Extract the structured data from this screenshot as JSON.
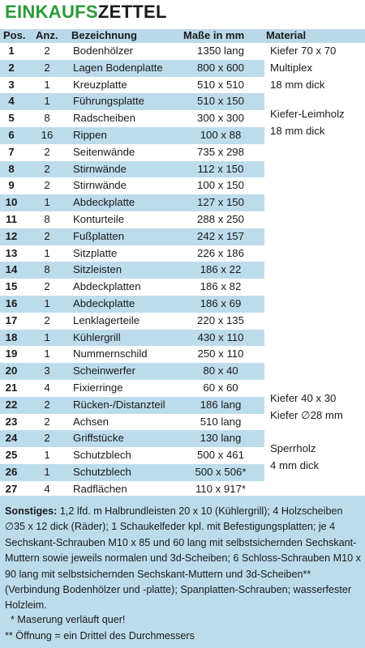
{
  "title": {
    "part1": "EINKAUFS",
    "part2": "ZETTEL"
  },
  "header": {
    "pos": "Pos.",
    "anz": "Anz.",
    "bez": "Bezeichnung",
    "mass": "Maße in mm",
    "mat": "Material"
  },
  "rows": [
    {
      "pos": "1",
      "anz": "2",
      "bez": "Bodenhölzer",
      "mass": "1350 lang"
    },
    {
      "pos": "2",
      "anz": "2",
      "bez": "Lagen Bodenplatte",
      "mass": "800 x 600"
    },
    {
      "pos": "3",
      "anz": "1",
      "bez": "Kreuzplatte",
      "mass": "510 x 510"
    },
    {
      "pos": "4",
      "anz": "1",
      "bez": "Führungsplatte",
      "mass": "510 x 150"
    },
    {
      "pos": "5",
      "anz": "8",
      "bez": "Radscheiben",
      "mass": "300 x 300"
    },
    {
      "pos": "6",
      "anz": "16",
      "bez": "Rippen",
      "mass": "100 x 88"
    },
    {
      "pos": "7",
      "anz": "2",
      "bez": "Seitenwände",
      "mass": "735 x 298"
    },
    {
      "pos": "8",
      "anz": "2",
      "bez": "Stirnwände",
      "mass": "112 x 150"
    },
    {
      "pos": "9",
      "anz": "2",
      "bez": "Stirnwände",
      "mass": "100 x 150"
    },
    {
      "pos": "10",
      "anz": "1",
      "bez": "Abdeckplatte",
      "mass": "127 x 150"
    },
    {
      "pos": "11",
      "anz": "8",
      "bez": "Konturteile",
      "mass": "288 x 250"
    },
    {
      "pos": "12",
      "anz": "2",
      "bez": "Fußplatten",
      "mass": "242 x 157"
    },
    {
      "pos": "13",
      "anz": "1",
      "bez": "Sitzplatte",
      "mass": "226 x 186"
    },
    {
      "pos": "14",
      "anz": "8",
      "bez": "Sitzleisten",
      "mass": "186 x 22"
    },
    {
      "pos": "15",
      "anz": "2",
      "bez": "Abdeckplatten",
      "mass": "186 x 82"
    },
    {
      "pos": "16",
      "anz": "1",
      "bez": "Abdeckplatte",
      "mass": "186 x 69"
    },
    {
      "pos": "17",
      "anz": "2",
      "bez": "Lenklagerteile",
      "mass": "220 x 135"
    },
    {
      "pos": "18",
      "anz": "1",
      "bez": "Kühlergrill",
      "mass": "430 x 110"
    },
    {
      "pos": "19",
      "anz": "1",
      "bez": "Nummernschild",
      "mass": "250 x 110"
    },
    {
      "pos": "20",
      "anz": "3",
      "bez": "Scheinwerfer",
      "mass": "80 x 40"
    },
    {
      "pos": "21",
      "anz": "4",
      "bez": "Fixierringe",
      "mass": "60 x 60"
    },
    {
      "pos": "22",
      "anz": "2",
      "bez": "Rücken-/Distanzteil",
      "mass": "186 lang"
    },
    {
      "pos": "23",
      "anz": "2",
      "bez": "Achsen",
      "mass": "510 lang"
    },
    {
      "pos": "24",
      "anz": "2",
      "bez": "Griffstücke",
      "mass": "130 lang"
    },
    {
      "pos": "25",
      "anz": "1",
      "bez": "Schutzblech",
      "mass": "500 x 461"
    },
    {
      "pos": "26",
      "anz": "1",
      "bez": "Schutzblech",
      "mass": "500 x 506*"
    },
    {
      "pos": "27",
      "anz": "4",
      "bez": "Radflächen",
      "mass": "110 x 917*"
    }
  ],
  "materials": {
    "m1": "Kiefer 70 x 70",
    "m2a": "Multiplex",
    "m2b": "18 mm dick",
    "m5a": "Kiefer-Leimholz",
    "m5b": "18 mm dick",
    "m22": "Kiefer 40 x 30",
    "m23": "Kiefer ∅28 mm",
    "m25a": "Sperrholz",
    "m25b": "4 mm dick"
  },
  "footer": {
    "label": "Sonstiges:",
    "text": " 1,2 lfd. m Halbrundleisten 20 x 10 (Kühlergrill); 4 Holzscheiben ∅35 x 12 dick (Räder); 1 Schaukelfeder kpl. mit Befestigungsplatten; je 4 Sechskant-Schrauben M10 x 85 und 60 lang mit selbstsichernden Sechskant-Muttern sowie jeweils normalen und 3d-Scheiben; 6 Schloss-Schrauben M10 x 90 lang mit selbstsichernden Sechskant-Muttern und 3d-Scheiben** (Verbindung Bodenhölzer und -platte); Spanplatten-Schrauben; wasserfester Holzleim.",
    "note1": "  * Maserung verläuft quer!",
    "note2": "** Öffnung = ein Drittel des Durchmessers"
  }
}
